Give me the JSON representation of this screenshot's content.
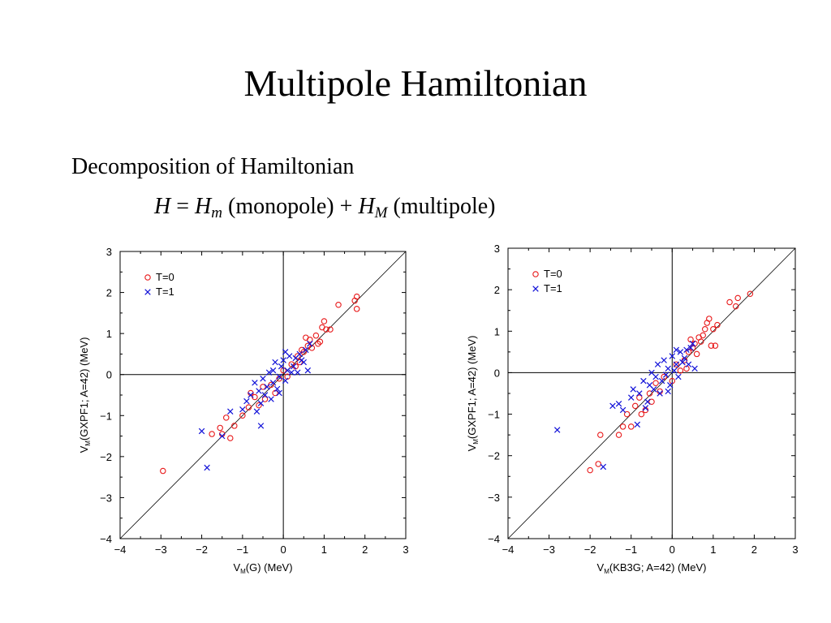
{
  "title": "Multipole Hamiltonian",
  "bullet": "Decomposition of Hamiltonian",
  "formula": {
    "H": "H",
    "eq": " = ",
    "Hm": "H",
    "m_sub": "m",
    "monopole": " (monopole) + ",
    "HM": "H",
    "M_sub": "M",
    "multipole": " (multipole)"
  },
  "colors": {
    "T0": "#e8191a",
    "T1": "#1010d8"
  },
  "chart_data": [
    {
      "type": "scatter",
      "xlabel_main": "V",
      "xlabel_sub": "M",
      "xlabel_rest": "(G) (MeV)",
      "ylabel_main": "V",
      "ylabel_sub": "M",
      "ylabel_rest": "(GXPF1; A=42) (MeV)",
      "xlim": [
        -4,
        3
      ],
      "ylim": [
        -4,
        3
      ],
      "x_ticks": [
        "−4",
        "−3",
        "−2",
        "−1",
        "0",
        "1",
        "2",
        "3"
      ],
      "y_ticks": [
        "−4",
        "−3",
        "−2",
        "−1",
        "0",
        "1",
        "2",
        "3"
      ],
      "grid": false,
      "reference_lines": [
        "y=x",
        "x=0",
        "y=0"
      ],
      "legend_placement": "top-left",
      "series": [
        {
          "name": "T=0",
          "marker": "circle",
          "points": [
            [
              -2.95,
              -2.35
            ],
            [
              -1.75,
              -1.45
            ],
            [
              -1.55,
              -1.3
            ],
            [
              -1.5,
              -1.45
            ],
            [
              -1.4,
              -1.05
            ],
            [
              -1.3,
              -1.55
            ],
            [
              -1.2,
              -1.25
            ],
            [
              -1.0,
              -1.0
            ],
            [
              -0.85,
              -0.8
            ],
            [
              -0.8,
              -0.45
            ],
            [
              -0.7,
              -0.55
            ],
            [
              -0.6,
              -0.75
            ],
            [
              -0.5,
              -0.3
            ],
            [
              -0.45,
              -0.6
            ],
            [
              -0.3,
              -0.25
            ],
            [
              -0.2,
              -0.45
            ],
            [
              -0.1,
              -0.1
            ],
            [
              0.0,
              0.1
            ],
            [
              0.1,
              -0.05
            ],
            [
              0.2,
              0.25
            ],
            [
              0.3,
              0.2
            ],
            [
              0.35,
              0.45
            ],
            [
              0.4,
              0.3
            ],
            [
              0.45,
              0.6
            ],
            [
              0.5,
              0.55
            ],
            [
              0.55,
              0.9
            ],
            [
              0.6,
              0.7
            ],
            [
              0.65,
              0.85
            ],
            [
              0.7,
              0.65
            ],
            [
              0.8,
              0.95
            ],
            [
              0.85,
              0.75
            ],
            [
              0.9,
              0.8
            ],
            [
              0.95,
              1.15
            ],
            [
              1.0,
              1.3
            ],
            [
              1.05,
              1.1
            ],
            [
              1.15,
              1.1
            ],
            [
              1.35,
              1.7
            ],
            [
              1.75,
              1.8
            ],
            [
              1.8,
              1.9
            ],
            [
              1.8,
              1.6
            ]
          ]
        },
        {
          "name": "T=1",
          "marker": "x",
          "points": [
            [
              -2.0,
              -1.38
            ],
            [
              -1.87,
              -2.27
            ],
            [
              -1.5,
              -1.5
            ],
            [
              -1.3,
              -0.9
            ],
            [
              -1.0,
              -0.85
            ],
            [
              -0.9,
              -0.65
            ],
            [
              -0.8,
              -0.5
            ],
            [
              -0.7,
              -0.2
            ],
            [
              -0.65,
              -0.9
            ],
            [
              -0.6,
              -0.4
            ],
            [
              -0.55,
              -0.7
            ],
            [
              -0.55,
              -1.25
            ],
            [
              -0.5,
              -0.1
            ],
            [
              -0.45,
              -0.5
            ],
            [
              -0.4,
              -0.3
            ],
            [
              -0.35,
              0.05
            ],
            [
              -0.3,
              -0.6
            ],
            [
              -0.25,
              -0.2
            ],
            [
              -0.2,
              0.3
            ],
            [
              -0.15,
              -0.35
            ],
            [
              -0.1,
              -0.05
            ],
            [
              -0.05,
              0.2
            ],
            [
              0.0,
              0.35
            ],
            [
              0.05,
              -0.15
            ],
            [
              0.1,
              0.1
            ],
            [
              0.15,
              0.45
            ],
            [
              0.2,
              0.05
            ],
            [
              0.25,
              0.2
            ],
            [
              0.3,
              0.4
            ],
            [
              0.35,
              0.05
            ],
            [
              0.4,
              0.5
            ],
            [
              0.45,
              0.35
            ],
            [
              0.55,
              0.6
            ],
            [
              0.6,
              0.1
            ],
            [
              -0.25,
              0.1
            ],
            [
              0.05,
              0.55
            ],
            [
              -0.1,
              -0.45
            ],
            [
              0.5,
              0.3
            ],
            [
              0.65,
              0.75
            ]
          ]
        }
      ]
    },
    {
      "type": "scatter",
      "xlabel_main": "V",
      "xlabel_sub": "M",
      "xlabel_rest": "(KB3G; A=42) (MeV)",
      "ylabel_main": "V",
      "ylabel_sub": "M",
      "ylabel_rest": "(GXPF1; A=42) (MeV)",
      "xlim": [
        -4,
        3
      ],
      "ylim": [
        -4,
        3
      ],
      "x_ticks": [
        "−4",
        "−3",
        "−2",
        "−1",
        "0",
        "1",
        "2",
        "3"
      ],
      "y_ticks": [
        "−4",
        "−3",
        "−2",
        "−1",
        "0",
        "1",
        "2",
        "3"
      ],
      "grid": false,
      "reference_lines": [
        "y=x",
        "x=0",
        "y=0"
      ],
      "legend_placement": "top-left",
      "series": [
        {
          "name": "T=0",
          "marker": "circle",
          "points": [
            [
              -2.0,
              -2.35
            ],
            [
              -1.8,
              -2.2
            ],
            [
              -1.75,
              -1.5
            ],
            [
              -1.3,
              -1.5
            ],
            [
              -1.2,
              -1.3
            ],
            [
              -1.1,
              -1.0
            ],
            [
              -1.0,
              -1.3
            ],
            [
              -0.9,
              -0.8
            ],
            [
              -0.8,
              -0.6
            ],
            [
              -0.75,
              -1.0
            ],
            [
              -0.65,
              -0.9
            ],
            [
              -0.55,
              -0.5
            ],
            [
              -0.5,
              -0.7
            ],
            [
              -0.4,
              -0.25
            ],
            [
              -0.3,
              -0.45
            ],
            [
              -0.2,
              -0.1
            ],
            [
              0.0,
              -0.2
            ],
            [
              0.1,
              0.2
            ],
            [
              0.2,
              0.05
            ],
            [
              0.3,
              0.3
            ],
            [
              0.4,
              0.5
            ],
            [
              0.45,
              0.8
            ],
            [
              0.5,
              0.6
            ],
            [
              0.55,
              0.7
            ],
            [
              0.6,
              0.45
            ],
            [
              0.65,
              0.85
            ],
            [
              0.7,
              0.75
            ],
            [
              0.8,
              1.05
            ],
            [
              0.85,
              1.2
            ],
            [
              0.9,
              1.3
            ],
            [
              0.95,
              0.65
            ],
            [
              1.0,
              1.05
            ],
            [
              1.05,
              0.65
            ],
            [
              1.1,
              1.15
            ],
            [
              1.4,
              1.7
            ],
            [
              1.55,
              1.6
            ],
            [
              1.6,
              1.8
            ],
            [
              1.9,
              1.9
            ],
            [
              0.75,
              0.9
            ],
            [
              0.35,
              0.1
            ]
          ]
        },
        {
          "name": "T=1",
          "marker": "x",
          "points": [
            [
              -2.8,
              -1.38
            ],
            [
              -1.68,
              -2.27
            ],
            [
              -1.45,
              -0.8
            ],
            [
              -1.3,
              -0.75
            ],
            [
              -1.2,
              -0.9
            ],
            [
              -1.0,
              -0.6
            ],
            [
              -0.95,
              -0.4
            ],
            [
              -0.85,
              -1.25
            ],
            [
              -0.8,
              -0.5
            ],
            [
              -0.7,
              -0.2
            ],
            [
              -0.6,
              -0.7
            ],
            [
              -0.55,
              -0.3
            ],
            [
              -0.5,
              0.0
            ],
            [
              -0.45,
              -0.4
            ],
            [
              -0.4,
              -0.1
            ],
            [
              -0.35,
              0.2
            ],
            [
              -0.3,
              -0.5
            ],
            [
              -0.25,
              -0.2
            ],
            [
              -0.2,
              0.3
            ],
            [
              -0.15,
              -0.05
            ],
            [
              -0.1,
              0.1
            ],
            [
              -0.05,
              -0.3
            ],
            [
              0.0,
              0.4
            ],
            [
              0.05,
              0.05
            ],
            [
              0.1,
              0.2
            ],
            [
              0.15,
              -0.1
            ],
            [
              0.2,
              0.5
            ],
            [
              0.25,
              0.25
            ],
            [
              0.3,
              0.35
            ],
            [
              0.35,
              0.55
            ],
            [
              0.45,
              0.6
            ],
            [
              0.5,
              0.7
            ],
            [
              0.55,
              0.1
            ],
            [
              -0.65,
              -0.85
            ],
            [
              -0.1,
              -0.45
            ],
            [
              0.1,
              0.55
            ],
            [
              0.4,
              0.2
            ]
          ]
        }
      ]
    }
  ]
}
